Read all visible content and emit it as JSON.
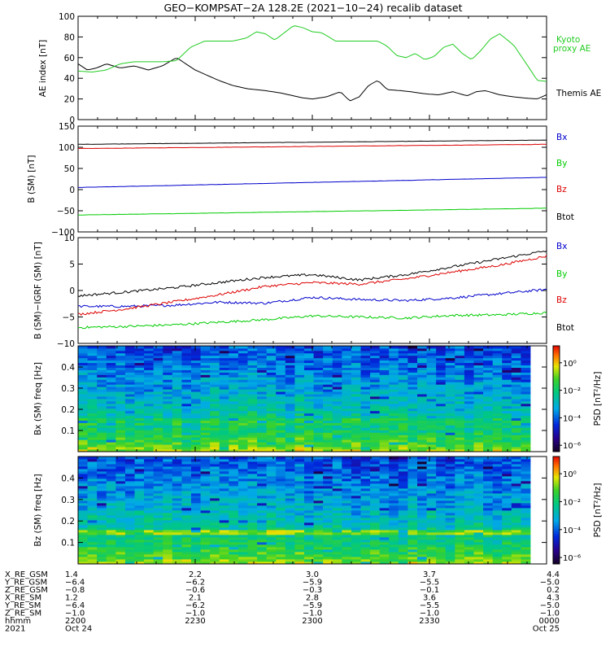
{
  "title": "GEO−KOMPSAT−2A 128.2E (2021−10−24) recalib dataset",
  "colors": {
    "black": "#000000",
    "red": "#dd0000",
    "green": "#00cc00",
    "blue": "#0000cc",
    "kyoto": "#22cc22"
  },
  "chart_data": [
    {
      "type": "line",
      "ylabel": "AE index [nT]",
      "ylim": [
        0,
        100
      ],
      "yticks": [
        "0",
        "20",
        "40",
        "60",
        "80",
        "100"
      ],
      "xlim": [
        0,
        1
      ],
      "series": [
        {
          "name": "Themis AE",
          "color": "#000000",
          "x": [
            0,
            0.02,
            0.04,
            0.06,
            0.09,
            0.12,
            0.15,
            0.18,
            0.21,
            0.25,
            0.28,
            0.3,
            0.33,
            0.36,
            0.4,
            0.43,
            0.45,
            0.48,
            0.5,
            0.53,
            0.56,
            0.58,
            0.6,
            0.62,
            0.64,
            0.66,
            0.69,
            0.71,
            0.74,
            0.77,
            0.8,
            0.83,
            0.85,
            0.87,
            0.9,
            0.93,
            0.95,
            0.98,
            1.0
          ],
          "y": [
            54,
            48,
            50,
            54,
            50,
            52,
            48,
            52,
            60,
            48,
            42,
            38,
            33,
            30,
            28,
            26,
            24,
            21,
            20,
            22,
            27,
            18,
            22,
            33,
            38,
            29,
            28,
            27,
            25,
            24,
            27,
            23,
            27,
            28,
            24,
            22,
            21,
            20,
            24
          ]
        },
        {
          "name": "Kyoto proxy AE",
          "color": "#22cc22",
          "x": [
            0,
            0.03,
            0.06,
            0.09,
            0.12,
            0.15,
            0.18,
            0.21,
            0.24,
            0.27,
            0.3,
            0.33,
            0.36,
            0.38,
            0.4,
            0.42,
            0.44,
            0.46,
            0.48,
            0.5,
            0.52,
            0.55,
            0.58,
            0.61,
            0.64,
            0.66,
            0.68,
            0.7,
            0.72,
            0.74,
            0.76,
            0.78,
            0.8,
            0.82,
            0.84,
            0.86,
            0.88,
            0.9,
            0.93,
            0.96,
            0.98,
            1.0
          ],
          "y": [
            47,
            46,
            48,
            54,
            56,
            56,
            56,
            57,
            70,
            76,
            76,
            76,
            79,
            85,
            83,
            77,
            84,
            91,
            89,
            85,
            84,
            76,
            76,
            76,
            76,
            71,
            62,
            60,
            64,
            58,
            61,
            70,
            73,
            64,
            58,
            67,
            78,
            83,
            72,
            52,
            38,
            37
          ]
        }
      ]
    },
    {
      "type": "line",
      "ylabel": "B (SM) [nT]",
      "ylim": [
        -100,
        150
      ],
      "yticks": [
        "−100",
        "−50",
        "0",
        "50",
        "100",
        "150"
      ],
      "xlim": [
        0,
        1
      ],
      "series": [
        {
          "name": "Bx",
          "color": "#0000cc",
          "x": [
            0,
            1
          ],
          "y": [
            5,
            29
          ]
        },
        {
          "name": "By",
          "color": "#00cc00",
          "x": [
            0,
            1
          ],
          "y": [
            -60,
            -44
          ]
        },
        {
          "name": "Bz",
          "color": "#dd0000",
          "x": [
            0,
            1
          ],
          "y": [
            97,
            107
          ]
        },
        {
          "name": "Btot",
          "color": "#000000",
          "x": [
            0,
            1
          ],
          "y": [
            107,
            117
          ]
        }
      ]
    },
    {
      "type": "line",
      "ylabel": "B (SM)−IGRF (SM) [nT]",
      "ylim": [
        -10,
        10
      ],
      "yticks": [
        "−10",
        "−5",
        "0",
        "5",
        "10"
      ],
      "xlim": [
        0,
        1
      ],
      "series": [
        {
          "name": "Bx",
          "color": "#0000cc",
          "x": [
            0,
            0.1,
            0.2,
            0.3,
            0.4,
            0.5,
            0.6,
            0.7,
            0.8,
            0.9,
            1.0
          ],
          "y": [
            -3.0,
            -3.0,
            -2.8,
            -2.2,
            -2.4,
            -1.3,
            -1.7,
            -1.9,
            -1.4,
            -0.6,
            0.2
          ]
        },
        {
          "name": "By",
          "color": "#00cc00",
          "x": [
            0,
            0.1,
            0.2,
            0.3,
            0.4,
            0.5,
            0.6,
            0.7,
            0.8,
            0.9,
            1.0
          ],
          "y": [
            -7.0,
            -6.8,
            -6.5,
            -6.0,
            -5.5,
            -4.8,
            -5.0,
            -5.2,
            -4.7,
            -4.6,
            -4.2
          ]
        },
        {
          "name": "Bz",
          "color": "#dd0000",
          "x": [
            0,
            0.1,
            0.2,
            0.3,
            0.4,
            0.5,
            0.6,
            0.7,
            0.8,
            0.9,
            1.0
          ],
          "y": [
            -4.5,
            -3.5,
            -2.2,
            -0.8,
            0.8,
            1.5,
            1.2,
            2.2,
            3.5,
            4.8,
            6.5
          ]
        },
        {
          "name": "Btot",
          "color": "#000000",
          "x": [
            0,
            0.1,
            0.2,
            0.3,
            0.4,
            0.5,
            0.6,
            0.7,
            0.8,
            0.9,
            1.0
          ],
          "y": [
            -1.0,
            -0.3,
            0.5,
            1.5,
            2.5,
            3.0,
            2.0,
            3.0,
            4.5,
            6.0,
            7.5
          ]
        }
      ]
    },
    {
      "type": "heatmap",
      "ylabel": "Bx (SM) freq [Hz]",
      "yticks": [
        "0.1",
        "0.2",
        "0.3",
        "0.4"
      ],
      "ylim": [
        0,
        0.5
      ],
      "colorbar_label": "PSD [nT²/Hz]",
      "colorbar_ticks": [
        "10⁰",
        "10⁻²",
        "10⁻⁴",
        "10⁻⁶"
      ]
    },
    {
      "type": "heatmap",
      "ylabel": "Bz (SM) freq [Hz]",
      "yticks": [
        "0.1",
        "0.2",
        "0.3",
        "0.4"
      ],
      "ylim": [
        0,
        0.5
      ],
      "colorbar_label": "PSD [nT²/Hz]",
      "colorbar_ticks": [
        "10⁰",
        "10⁻²",
        "10⁻⁴",
        "10⁻⁶"
      ]
    }
  ],
  "legends": {
    "ae": {
      "themis": "Themis AE",
      "kyoto_1": "Kyoto",
      "kyoto_2": "proxy AE"
    },
    "b": [
      "Bx",
      "By",
      "Bz",
      "Btot"
    ],
    "dB": [
      "Bx",
      "By",
      "Bz",
      "Btot"
    ]
  },
  "orbit_table": {
    "row_labels": [
      "X_RE_GSM",
      "Y_RE_GSM",
      "Z_RE_GSM",
      "X_RE_SM",
      "Y_RE_SM",
      "Z_RE_SM",
      "hhmm",
      "2021"
    ],
    "columns": [
      [
        "1.4",
        "−6.4",
        "−0.8",
        "1.2",
        "−6.4",
        "−1.0",
        "2200",
        "Oct 24"
      ],
      [
        "2.2",
        "−6.2",
        "−0.6",
        "2.1",
        "−6.2",
        "−1.0",
        "2230",
        ""
      ],
      [
        "3.0",
        "−5.9",
        "−0.3",
        "2.8",
        "−5.9",
        "−1.0",
        "2300",
        ""
      ],
      [
        "3.7",
        "−5.5",
        "−0.1",
        "3.6",
        "−5.5",
        "−1.0",
        "2330",
        ""
      ],
      [
        "4.4",
        "−5.0",
        "0.2",
        "4.3",
        "−5.0",
        "−1.0",
        "0000",
        "Oct 25"
      ]
    ]
  }
}
